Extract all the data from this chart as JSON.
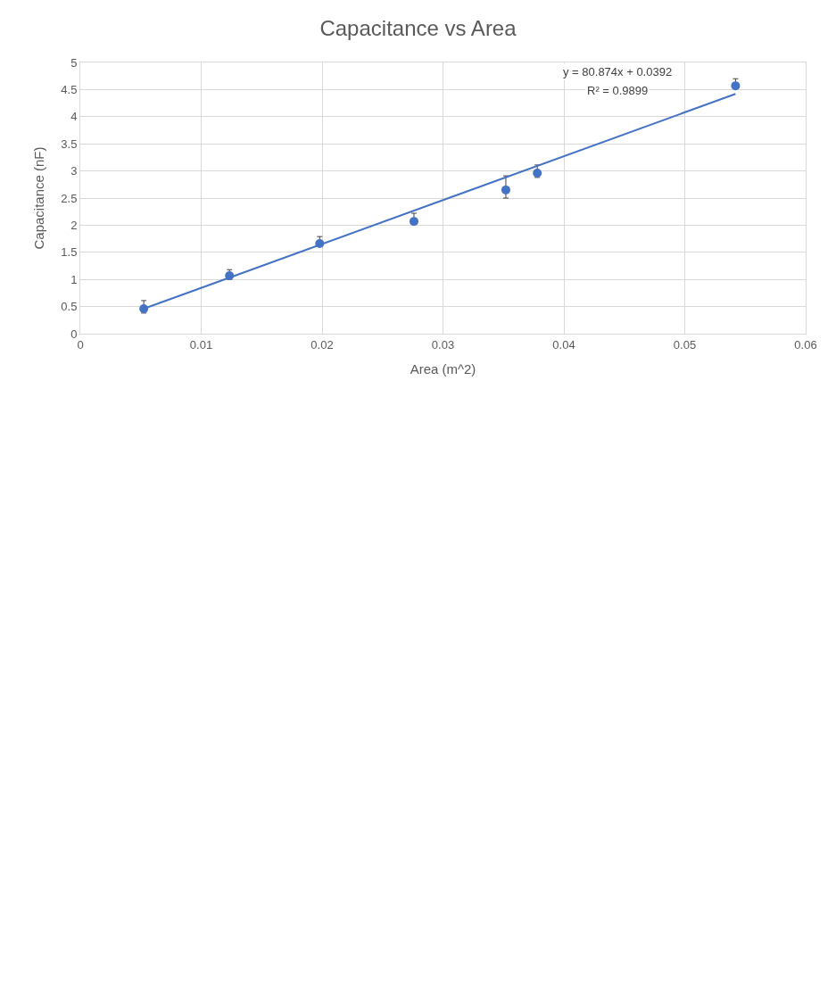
{
  "chart_data": {
    "type": "scatter",
    "title": "Capacitance vs Area",
    "xlabel": "Area (m^2)",
    "ylabel": "Capacitance (nF)",
    "series": [
      {
        "color": "#4472c4",
        "x": [
          0.00525,
          0.01234,
          0.0198,
          0.0276,
          0.0352,
          0.0378,
          0.0542
        ],
        "values": [
          0.46,
          1.07,
          1.66,
          2.07,
          2.65,
          2.96,
          4.57
        ],
        "errors": [
          [
            0.38,
            0.61
          ],
          [
            1.0,
            1.18
          ],
          [
            1.61,
            1.79
          ],
          [
            2.04,
            2.22
          ],
          [
            2.5,
            2.91
          ],
          [
            2.88,
            3.11
          ],
          [
            4.56,
            4.7
          ]
        ],
        "marker": "circle"
      },
      {
        "type": "line",
        "color": "#4472c4",
        "x": [
          0.00525,
          0.0542
        ],
        "values": [
          0.46,
          4.42
        ],
        "line_style": "solid",
        "marker": "none"
      }
    ],
    "annotations": [
      "y = 80.874x + 0.0392",
      "R² = 0.9899"
    ],
    "xlim": [
      0,
      0.06
    ],
    "xticks": [
      0,
      0.01,
      0.02,
      0.03,
      0.04,
      0.05,
      0.06
    ],
    "ylim": [
      0,
      5
    ],
    "yticks": [
      0,
      0.5,
      1,
      1.5,
      2,
      2.5,
      3,
      3.5,
      4,
      4.5,
      5
    ],
    "grid": true
  }
}
